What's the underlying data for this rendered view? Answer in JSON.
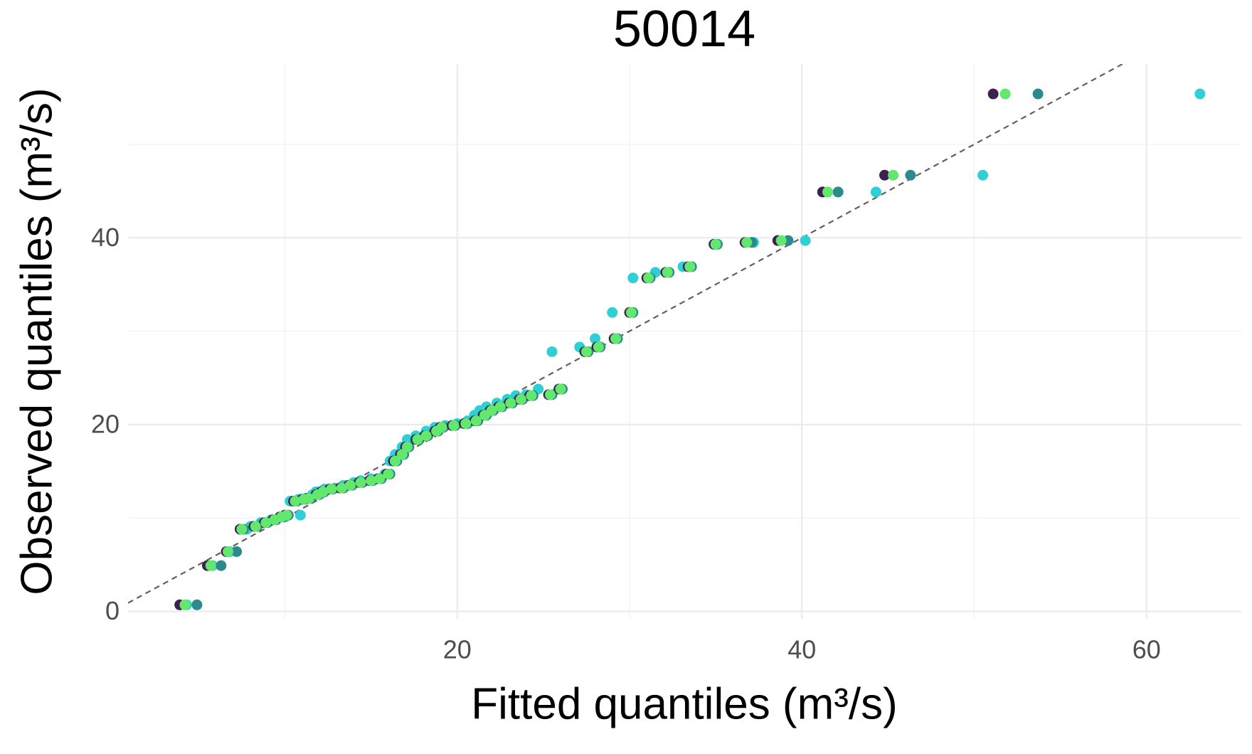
{
  "chart_data": {
    "type": "scatter",
    "title": "50014",
    "x_label": "Fitted quantiles (m³/s)",
    "y_label": "Observed quantiles (m³/s)",
    "xlim": [
      0.9,
      65.5
    ],
    "ylim": [
      -0.8,
      58.6
    ],
    "xticks": [
      20,
      40,
      60
    ],
    "yticks": [
      0,
      20,
      40
    ],
    "x_minor_grid": [
      10,
      30,
      50
    ],
    "y_minor_grid": [
      10,
      30,
      50
    ],
    "grid": true,
    "identity_line": true,
    "values": [
      0.7,
      4.9,
      6.4,
      8.8,
      9.1,
      9.5,
      9.8,
      10.1,
      10.3,
      11.8,
      12.0,
      12.1,
      12.5,
      12.8,
      13.1,
      13.2,
      13.5,
      13.8,
      14.0,
      14.2,
      14.7,
      16.1,
      16.8,
      17.6,
      18.4,
      18.8,
      19.3,
      19.7,
      19.9,
      20.1,
      20.4,
      21.0,
      21.5,
      21.9,
      22.3,
      22.7,
      23.1,
      23.2,
      23.8,
      27.8,
      28.3,
      29.2,
      32.0,
      35.7,
      36.3,
      36.9,
      39.3,
      39.5,
      39.7,
      44.9,
      46.7,
      55.4
    ],
    "series": [
      {
        "color": "#2ed0d6",
        "x": [
          4.3,
          5.8,
          6.8,
          7.8,
          8.0,
          8.6,
          9.2,
          10.0,
          10.9,
          10.3,
          10.8,
          11.2,
          11.6,
          11.8,
          12.3,
          12.9,
          13.4,
          14.0,
          14.4,
          15.0,
          15.8,
          16.1,
          16.4,
          16.8,
          17.1,
          17.6,
          18.2,
          18.7,
          19.3,
          20.0,
          20.6,
          21.0,
          21.3,
          21.7,
          22.3,
          22.9,
          23.4,
          24.0,
          24.7,
          25.5,
          27.1,
          28.0,
          29.0,
          30.2,
          31.5,
          33.1,
          34.9,
          37.2,
          40.2,
          44.3,
          50.5,
          63.1
        ]
      },
      {
        "color": "#2b8a8e",
        "x": [
          4.9,
          6.3,
          7.2,
          7.6,
          8.4,
          9.0,
          9.5,
          9.9,
          10.2,
          10.7,
          11.2,
          11.5,
          12.0,
          12.3,
          12.8,
          13.4,
          13.9,
          14.5,
          15.1,
          15.6,
          16.1,
          16.5,
          16.9,
          17.2,
          17.8,
          18.3,
          18.9,
          19.2,
          19.9,
          20.6,
          21.2,
          21.7,
          22.1,
          22.6,
          23.2,
          23.8,
          24.4,
          25.5,
          26.1,
          27.6,
          28.3,
          29.3,
          30.2,
          31.2,
          32.3,
          33.6,
          35.1,
          37.1,
          39.2,
          42.1,
          46.3,
          53.7
        ]
      },
      {
        "color": "#3d2050",
        "x": [
          3.9,
          5.5,
          6.6,
          7.4,
          8.2,
          8.8,
          9.3,
          9.7,
          10.0,
          10.5,
          11.0,
          11.3,
          11.8,
          12.1,
          12.6,
          13.2,
          13.7,
          14.3,
          14.9,
          15.4,
          15.9,
          16.3,
          16.7,
          17.0,
          17.6,
          18.1,
          18.7,
          19.0,
          19.7,
          20.4,
          21.0,
          21.5,
          21.9,
          22.4,
          23.0,
          23.6,
          24.2,
          25.3,
          25.9,
          27.4,
          28.1,
          29.1,
          30.0,
          31.0,
          32.1,
          33.4,
          34.9,
          36.7,
          38.6,
          41.2,
          44.8,
          51.1
        ]
      },
      {
        "color": "#62e86c",
        "x": [
          4.2,
          5.7,
          6.7,
          7.5,
          8.3,
          8.9,
          9.4,
          9.8,
          10.1,
          10.6,
          11.1,
          11.4,
          11.9,
          12.2,
          12.7,
          13.3,
          13.8,
          14.4,
          15.0,
          15.5,
          16.0,
          16.4,
          16.8,
          17.1,
          17.7,
          18.2,
          18.8,
          19.1,
          19.8,
          20.5,
          21.1,
          21.6,
          22.0,
          22.5,
          23.1,
          23.7,
          24.3,
          25.4,
          26.0,
          27.5,
          28.2,
          29.2,
          30.1,
          31.1,
          32.2,
          33.5,
          35.0,
          36.8,
          38.8,
          41.5,
          45.3,
          51.8
        ]
      }
    ]
  }
}
